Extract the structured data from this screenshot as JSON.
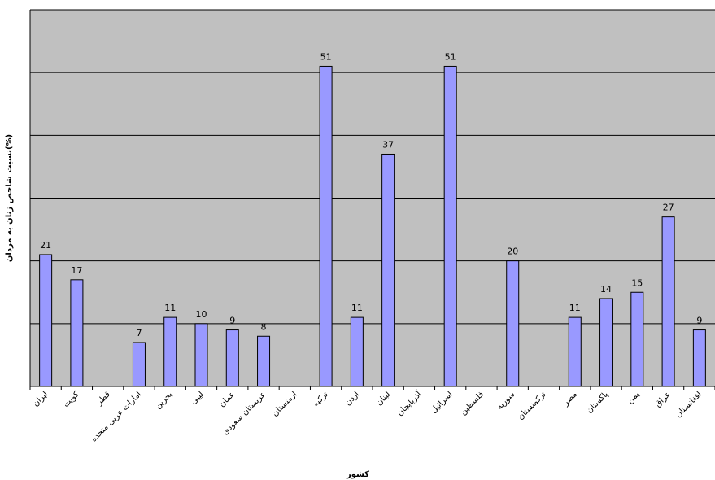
{
  "chart_data": {
    "type": "bar",
    "title": "",
    "xlabel": "کشور",
    "ylabel": "نسبت شاخص زنان به مردان(%)",
    "ylim": [
      0,
      60
    ],
    "grid": true,
    "categories": [
      "ایران",
      "کویت",
      "قطر",
      "امارات عربی متحده",
      "بحرین",
      "لیبی",
      "عمان",
      "عربستان سعودی",
      "ارمنستان",
      "ترکیه",
      "اردن",
      "لبنان",
      "آذربایجان",
      "اسرائیل",
      "فلسطین",
      "سوریه",
      "ترکمنستان",
      "مصر",
      "پاکستان",
      "یمن",
      "عراق",
      "افغانستان"
    ],
    "values": [
      21,
      17,
      null,
      7,
      11,
      10,
      9,
      8,
      null,
      51,
      11,
      37,
      null,
      51,
      null,
      20,
      null,
      11,
      14,
      15,
      27,
      9
    ],
    "colors": {
      "plot_bg": "#c0c0c0",
      "bar_fill": "#9999ff",
      "bar_stroke": "#000000",
      "grid": "#000000"
    }
  }
}
